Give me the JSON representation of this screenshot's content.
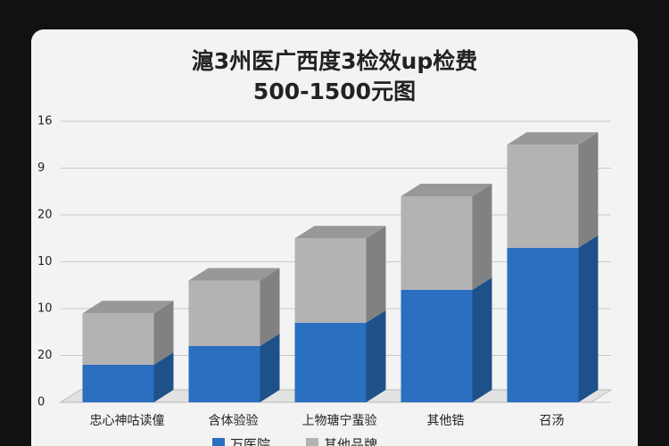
{
  "chart_data": {
    "type": "stacked-bar-3d",
    "title": "滬3州医广西度3检效up检费",
    "subtitle": "500-1500元图",
    "categories": [
      "忠心神咕读僮",
      "含体验验",
      "上物瑭宁蜚验",
      "其他锆",
      "召汤"
    ],
    "series": [
      {
        "name": "万医院",
        "color": "#2a6fc0",
        "values": [
          0.8,
          1.2,
          1.7,
          2.4,
          3.3
        ]
      },
      {
        "name": "其他品牌",
        "color": "#b3b3b3",
        "values": [
          1.1,
          1.4,
          1.8,
          2.0,
          2.2
        ]
      }
    ],
    "ylim": [
      0,
      6
    ],
    "yticks": [
      {
        "value": 0,
        "label": "0"
      },
      {
        "value": 1,
        "label": "20"
      },
      {
        "value": 2,
        "label": "10"
      },
      {
        "value": 3,
        "label": "10"
      },
      {
        "value": 4,
        "label": "20"
      },
      {
        "value": 5,
        "label": "9"
      },
      {
        "value": 6,
        "label": "16"
      }
    ],
    "grid": true
  }
}
